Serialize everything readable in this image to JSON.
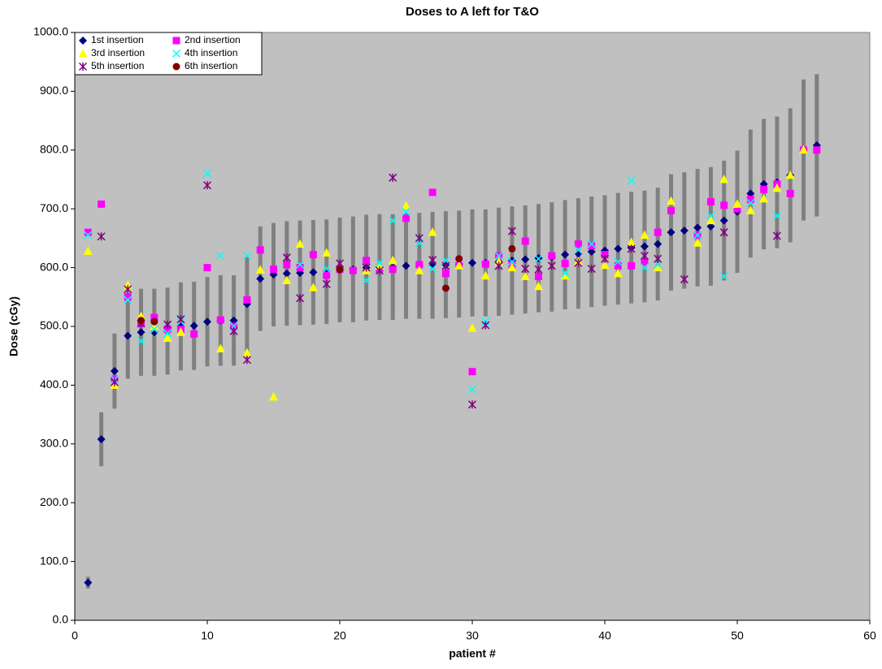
{
  "chart_data": {
    "type": "scatter",
    "title": "Doses to A left for T&O",
    "x_label": "patient #",
    "y_label": "Dose (cGy)",
    "x": [
      1,
      2,
      3,
      4,
      5,
      6,
      7,
      8,
      9,
      10,
      11,
      12,
      13,
      14,
      15,
      16,
      17,
      18,
      19,
      20,
      21,
      22,
      23,
      24,
      25,
      26,
      27,
      28,
      29,
      30,
      31,
      32,
      33,
      34,
      35,
      36,
      37,
      38,
      39,
      40,
      41,
      42,
      43,
      44,
      45,
      46,
      47,
      48,
      49,
      50,
      51,
      52,
      53,
      54,
      55,
      56
    ],
    "xlim": [
      0,
      60
    ],
    "xticks": [
      0,
      10,
      20,
      30,
      40,
      50,
      60
    ],
    "ylim": [
      0,
      1000
    ],
    "yticks": [
      {
        "value": 0,
        "label": "0.0"
      },
      {
        "value": 100,
        "label": "100.0"
      },
      {
        "value": 200,
        "label": "200.0"
      },
      {
        "value": 300,
        "label": "300.0"
      },
      {
        "value": 400,
        "label": "400.0"
      },
      {
        "value": 500,
        "label": "500.0"
      },
      {
        "value": 600,
        "label": "600.0"
      },
      {
        "value": 700,
        "label": "700.0"
      },
      {
        "value": 800,
        "label": "800.0"
      },
      {
        "value": 900,
        "label": "900.0"
      },
      {
        "value": 1000,
        "label": "1000.0"
      }
    ],
    "plot_background": "#c0c0c0",
    "error_color": "#808080",
    "series": [
      {
        "name": "1st insertion",
        "color": "#000080",
        "marker": "diamond",
        "values": [
          64,
          308,
          424,
          484,
          490,
          490,
          492,
          500,
          501,
          508,
          510,
          510,
          538,
          581,
          588,
          590,
          591,
          592,
          593,
          596,
          597,
          600,
          601,
          601,
          603,
          603,
          604,
          605,
          606,
          608,
          608,
          610,
          612,
          614,
          616,
          618,
          622,
          624,
          627,
          629,
          632,
          634,
          636,
          640,
          660,
          663,
          668,
          670,
          680,
          695,
          726,
          742,
          745,
          757,
          800,
          808
        ],
        "errors": [
          10,
          46,
          64,
          73,
          74,
          74,
          74,
          75,
          75,
          76,
          77,
          77,
          81,
          89,
          88,
          89,
          89,
          89,
          89,
          89,
          90,
          90,
          90,
          90,
          90,
          90,
          91,
          91,
          91,
          91,
          91,
          92,
          92,
          92,
          92,
          93,
          93,
          94,
          94,
          94,
          95,
          95,
          95,
          96,
          99,
          99,
          100,
          101,
          102,
          104,
          109,
          111,
          112,
          114,
          120,
          121
        ]
      },
      {
        "name": "2nd insertion",
        "color": "#ff00ff",
        "marker": "square",
        "values": [
          660,
          708,
          410,
          550,
          505,
          515,
          495,
          495,
          487,
          600,
          511,
          500,
          545,
          630,
          597,
          605,
          600,
          622,
          587,
          597,
          595,
          612,
          598,
          597,
          684,
          605,
          728,
          590,
          603,
          423,
          606,
          620,
          605,
          645,
          585,
          620,
          607,
          640,
          637,
          622,
          603,
          603,
          610,
          660,
          697,
          null,
          655,
          712,
          706,
          700,
          716,
          733,
          742,
          726,
          800,
          800
        ]
      },
      {
        "name": "3rd insertion",
        "color": "#ffff00",
        "marker": "triangle",
        "values": [
          628,
          null,
          400,
          570,
          517,
          500,
          480,
          490,
          null,
          null,
          462,
          null,
          455,
          596,
          380,
          578,
          640,
          566,
          625,
          null,
          null,
          595,
          603,
          612,
          705,
          595,
          660,
          null,
          603,
          497,
          586,
          610,
          600,
          585,
          568,
          null,
          586,
          610,
          null,
          604,
          590,
          643,
          655,
          600,
          713,
          null,
          642,
          680,
          750,
          708,
          697,
          717,
          735,
          757,
          800,
          null
        ]
      },
      {
        "name": "4th insertion",
        "color": "#00ffff",
        "marker": "x",
        "values": [
          655,
          null,
          410,
          545,
          475,
          495,
          488,
          508,
          null,
          760,
          620,
          500,
          620,
          null,
          null,
          null,
          605,
          null,
          598,
          null,
          null,
          578,
          608,
          680,
          695,
          642,
          598,
          612,
          null,
          393,
          508,
          620,
          610,
          null,
          615,
          null,
          590,
          630,
          640,
          null,
          610,
          748,
          600,
          605,
          null,
          null,
          655,
          688,
          585,
          null,
          710,
          null,
          688,
          null,
          null,
          null
        ]
      },
      {
        "name": "5th insertion",
        "color": "#800080",
        "marker": "star",
        "values": [
          null,
          653,
          405,
          563,
          505,
          null,
          503,
          512,
          null,
          740,
          null,
          492,
          443,
          null,
          null,
          617,
          548,
          null,
          572,
          607,
          null,
          600,
          595,
          753,
          null,
          650,
          613,
          603,
          null,
          367,
          502,
          603,
          662,
          598,
          597,
          603,
          null,
          608,
          598,
          615,
          null,
          632,
          620,
          615,
          null,
          580,
          null,
          null,
          660,
          null,
          null,
          null,
          654,
          null,
          null,
          null
        ]
      },
      {
        "name": "6th insertion",
        "color": "#800000",
        "marker": "circle",
        "values": [
          null,
          null,
          null,
          null,
          510,
          508,
          null,
          null,
          null,
          null,
          null,
          null,
          null,
          null,
          null,
          null,
          null,
          null,
          null,
          597,
          null,
          null,
          null,
          null,
          null,
          null,
          null,
          565,
          615,
          null,
          null,
          null,
          632,
          null,
          null,
          null,
          null,
          null,
          null,
          null,
          null,
          null,
          null,
          null,
          null,
          null,
          null,
          null,
          null,
          null,
          null,
          null,
          null,
          null,
          null,
          null
        ]
      }
    ]
  }
}
